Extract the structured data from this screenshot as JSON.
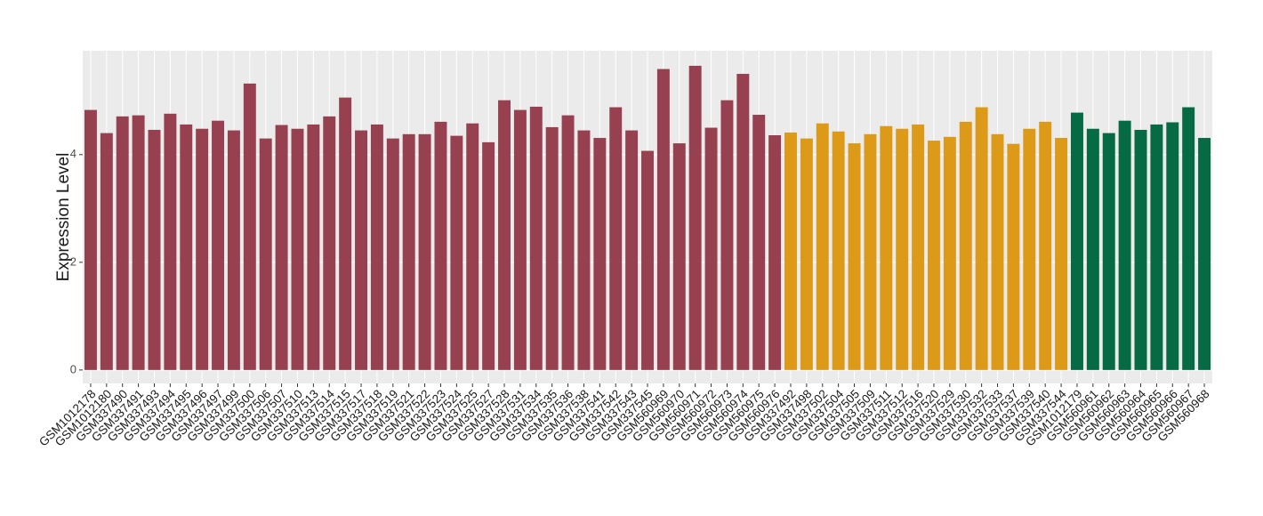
{
  "chart_data": {
    "type": "bar",
    "y_label": "Expression Level",
    "categories": [
      "GSM1012178",
      "GSM1012180",
      "GSM337490",
      "GSM337491",
      "GSM337493",
      "GSM337494",
      "GSM337495",
      "GSM337496",
      "GSM337497",
      "GSM337499",
      "GSM337500",
      "GSM337506",
      "GSM337507",
      "GSM337510",
      "GSM337513",
      "GSM337514",
      "GSM337515",
      "GSM337517",
      "GSM337518",
      "GSM337519",
      "GSM337521",
      "GSM337522",
      "GSM337523",
      "GSM337524",
      "GSM337525",
      "GSM337527",
      "GSM337528",
      "GSM337531",
      "GSM337534",
      "GSM337535",
      "GSM337536",
      "GSM337538",
      "GSM337541",
      "GSM337542",
      "GSM337543",
      "GSM337545",
      "GSM560969",
      "GSM560970",
      "GSM560971",
      "GSM560972",
      "GSM560973",
      "GSM560974",
      "GSM560975",
      "GSM560976",
      "GSM337492",
      "GSM337498",
      "GSM337502",
      "GSM337504",
      "GSM337505",
      "GSM337509",
      "GSM337511",
      "GSM337512",
      "GSM337516",
      "GSM337520",
      "GSM337529",
      "GSM337530",
      "GSM337532",
      "GSM337533",
      "GSM337537",
      "GSM337539",
      "GSM337540",
      "GSM337544",
      "GSM1012179",
      "GSM560961",
      "GSM560962",
      "GSM560963",
      "GSM560964",
      "GSM560965",
      "GSM560966",
      "GSM560967",
      "GSM560968"
    ],
    "values": [
      4.83,
      4.4,
      4.71,
      4.73,
      4.46,
      4.76,
      4.56,
      4.48,
      4.63,
      4.45,
      5.32,
      4.3,
      4.55,
      4.48,
      4.56,
      4.71,
      5.06,
      4.45,
      4.56,
      4.3,
      4.38,
      4.38,
      4.61,
      4.35,
      4.58,
      4.23,
      5.01,
      4.83,
      4.89,
      4.51,
      4.73,
      4.45,
      4.31,
      4.88,
      4.45,
      4.07,
      5.59,
      4.21,
      5.65,
      4.5,
      5.01,
      5.5,
      4.74,
      4.36,
      4.41,
      4.3,
      4.58,
      4.43,
      4.21,
      4.38,
      4.53,
      4.48,
      4.56,
      4.26,
      4.33,
      4.61,
      4.88,
      4.38,
      4.2,
      4.48,
      4.61,
      4.31,
      4.78,
      4.48,
      4.4,
      4.63,
      4.46,
      4.56,
      4.6,
      4.88,
      4.31
    ],
    "colors": [
      "#974150",
      "#974150",
      "#974150",
      "#974150",
      "#974150",
      "#974150",
      "#974150",
      "#974150",
      "#974150",
      "#974150",
      "#974150",
      "#974150",
      "#974150",
      "#974150",
      "#974150",
      "#974150",
      "#974150",
      "#974150",
      "#974150",
      "#974150",
      "#974150",
      "#974150",
      "#974150",
      "#974150",
      "#974150",
      "#974150",
      "#974150",
      "#974150",
      "#974150",
      "#974150",
      "#974150",
      "#974150",
      "#974150",
      "#974150",
      "#974150",
      "#974150",
      "#974150",
      "#974150",
      "#974150",
      "#974150",
      "#974150",
      "#974150",
      "#974150",
      "#974150",
      "#dd9a18",
      "#dd9a18",
      "#dd9a18",
      "#dd9a18",
      "#dd9a18",
      "#dd9a18",
      "#dd9a18",
      "#dd9a18",
      "#dd9a18",
      "#dd9a18",
      "#dd9a18",
      "#dd9a18",
      "#dd9a18",
      "#dd9a18",
      "#dd9a18",
      "#dd9a18",
      "#dd9a18",
      "#dd9a18",
      "#066a45",
      "#066a45",
      "#066a45",
      "#066a45",
      "#066a45",
      "#066a45",
      "#066a45",
      "#066a45",
      "#066a45"
    ],
    "ylim": [
      -0.25,
      5.93
    ],
    "yticks": [
      0,
      2,
      4
    ],
    "grid": true
  }
}
